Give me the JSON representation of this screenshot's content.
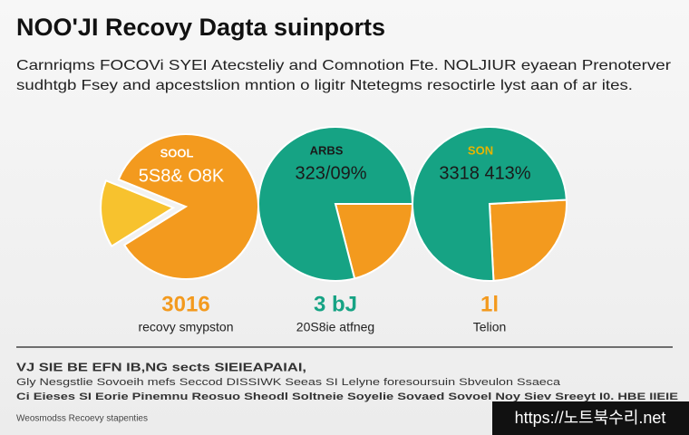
{
  "header": {
    "title": "NOO'JI Recovy Dagta suinports",
    "subtitle": [
      "Carnriqms FOCOVi SYEI Atecsteliy and Comnotion Fte. NOLJIUR eyaean Prenoterver",
      "sudhtgb Fsey and apcestslion mntion o ligitr Ntetegms resoctirle lyst aan of ar ites."
    ]
  },
  "chart_data": [
    {
      "type": "pie",
      "label": "SOOL",
      "headline": "5S8& O8K",
      "values": [
        15,
        85
      ],
      "colors": [
        "#f7c22e",
        "#f39a1e"
      ],
      "stat": "3016",
      "stat_color": "#f39a1e",
      "caption": "recovy smypston"
    },
    {
      "type": "pie",
      "label": "ARBS",
      "headline": "323/09%",
      "values": [
        21,
        79
      ],
      "colors": [
        "#f39a1e",
        "#16a384"
      ],
      "stat": "3 bJ",
      "stat_color": "#16a384",
      "caption": "20S8ie atfneg"
    },
    {
      "type": "pie",
      "label": "SON",
      "headline": "3318 413%",
      "values": [
        25,
        75
      ],
      "colors": [
        "#f39a1e",
        "#16a384"
      ],
      "stat": "1l",
      "stat_color": "#f39a1e",
      "caption": "Telion"
    }
  ],
  "footer": {
    "lines": [
      "VJ SIE BE EFN IB,NG sects SIEIEAPAIAI,",
      "Gly Nesgstlie Sovoeih mefs Seccod DISSIWK Seeas SI Lelyne foresoursuin Sbveulon Ssaeca",
      "Ci Eieses SI Eorie Pinemnu Reosuo Sheodl Soltneie Soyelie Sovaed Sovoel Noy Siev Sreeyt I0. HBE IIEIE",
      "Weosmodss Recoevy stapenties"
    ],
    "watermark": "https://노트북수리.net"
  }
}
